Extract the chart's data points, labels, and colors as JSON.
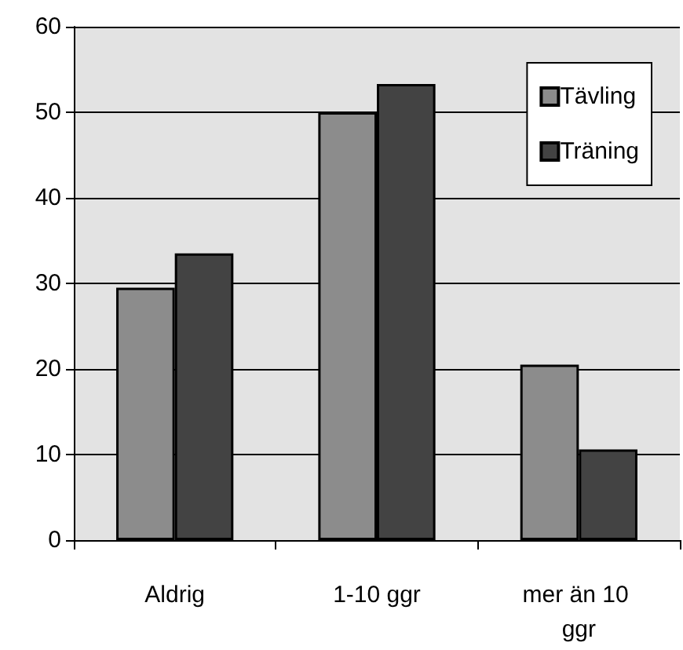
{
  "chart_data": {
    "type": "bar",
    "categories": [
      "Aldrig",
      "1-10 ggr",
      "mer än 10 ggr"
    ],
    "series": [
      {
        "name": "Tävling",
        "color": "#8c8c8c",
        "values": [
          29.5,
          50,
          20.5
        ]
      },
      {
        "name": "Träning",
        "color": "#434343",
        "values": [
          33.5,
          53.3,
          10.6
        ]
      }
    ],
    "ylim": [
      0,
      60
    ],
    "yticks": [
      0,
      10,
      20,
      30,
      40,
      50,
      60
    ],
    "grid": "y",
    "legend": "top right"
  }
}
